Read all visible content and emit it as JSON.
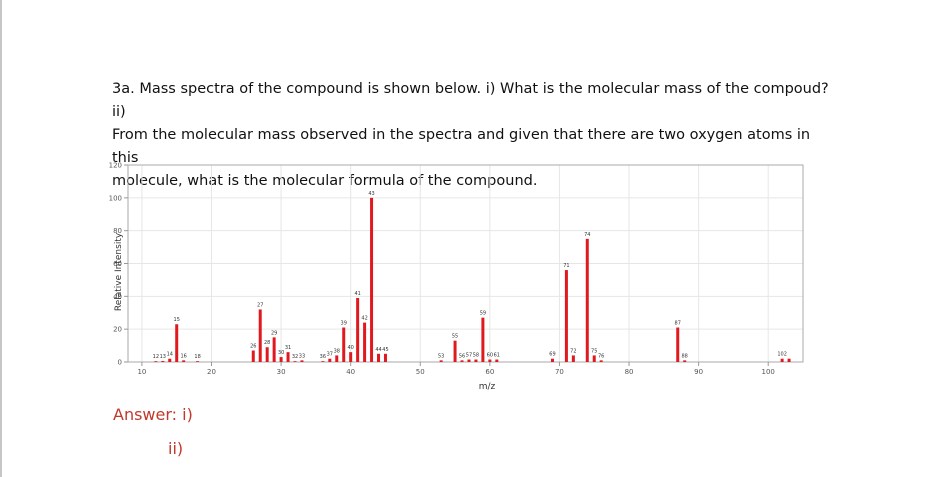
{
  "question": {
    "line1": "3a. Mass spectra of the compound is shown below. i) What is the molecular mass of the compoud? ii)",
    "line2": "From the molecular mass observed in the spectra and given that there are two oxygen atoms in this",
    "line3": "molecule, what is the molecular formula of the compound."
  },
  "answer": {
    "part1": "Answer: i)",
    "part2": "ii)"
  },
  "colors": {
    "bar": "#e0191f",
    "grid": "#e6e6e6",
    "axis": "#999999"
  },
  "chart_data": {
    "type": "bar",
    "title": "",
    "xlabel": "m/z",
    "ylabel": "Relative Intensity",
    "xlim": [
      8,
      105
    ],
    "ylim": [
      0,
      120
    ],
    "xticks": [
      10,
      20,
      30,
      40,
      50,
      60,
      70,
      80,
      90,
      100
    ],
    "yticks": [
      0,
      20,
      40,
      60,
      80,
      100,
      120
    ],
    "grid": true,
    "peaks": [
      {
        "mz": 12,
        "label": "12",
        "intensity": 0.5
      },
      {
        "mz": 13,
        "label": "13",
        "intensity": 0.6
      },
      {
        "mz": 14,
        "label": "14",
        "intensity": 2
      },
      {
        "mz": 15,
        "label": "15",
        "intensity": 23
      },
      {
        "mz": 16,
        "label": "16",
        "intensity": 1
      },
      {
        "mz": 18,
        "label": "18",
        "intensity": 0.5
      },
      {
        "mz": 26,
        "label": "26",
        "intensity": 7
      },
      {
        "mz": 27,
        "label": "27",
        "intensity": 32
      },
      {
        "mz": 28,
        "label": "28",
        "intensity": 9
      },
      {
        "mz": 29,
        "label": "29",
        "intensity": 15
      },
      {
        "mz": 30,
        "label": "30",
        "intensity": 3
      },
      {
        "mz": 31,
        "label": "31",
        "intensity": 6
      },
      {
        "mz": 32,
        "label": "32",
        "intensity": 0.5
      },
      {
        "mz": 33,
        "label": "33",
        "intensity": 1
      },
      {
        "mz": 36,
        "label": "36",
        "intensity": 0.5
      },
      {
        "mz": 37,
        "label": "37",
        "intensity": 2
      },
      {
        "mz": 38,
        "label": "38",
        "intensity": 4
      },
      {
        "mz": 39,
        "label": "39",
        "intensity": 21
      },
      {
        "mz": 40,
        "label": "40",
        "intensity": 6
      },
      {
        "mz": 41,
        "label": "41",
        "intensity": 39
      },
      {
        "mz": 42,
        "label": "42",
        "intensity": 24
      },
      {
        "mz": 43,
        "label": "43",
        "intensity": 100
      },
      {
        "mz": 44,
        "label": "44",
        "intensity": 5
      },
      {
        "mz": 45,
        "label": "45",
        "intensity": 5
      },
      {
        "mz": 53,
        "label": "53",
        "intensity": 1
      },
      {
        "mz": 55,
        "label": "55",
        "intensity": 13
      },
      {
        "mz": 56,
        "label": "56",
        "intensity": 1
      },
      {
        "mz": 57,
        "label": "57",
        "intensity": 1.5
      },
      {
        "mz": 58,
        "label": "58",
        "intensity": 1.5
      },
      {
        "mz": 59,
        "label": "59",
        "intensity": 27
      },
      {
        "mz": 60,
        "label": "60",
        "intensity": 1.5
      },
      {
        "mz": 61,
        "label": "61",
        "intensity": 1.5
      },
      {
        "mz": 69,
        "label": "69",
        "intensity": 2
      },
      {
        "mz": 71,
        "label": "71",
        "intensity": 56
      },
      {
        "mz": 72,
        "label": "72",
        "intensity": 4
      },
      {
        "mz": 74,
        "label": "74",
        "intensity": 75
      },
      {
        "mz": 75,
        "label": "75",
        "intensity": 4
      },
      {
        "mz": 76,
        "label": "76",
        "intensity": 1
      },
      {
        "mz": 87,
        "label": "87",
        "intensity": 21
      },
      {
        "mz": 88,
        "label": "88",
        "intensity": 1
      },
      {
        "mz": 102,
        "label": "102",
        "intensity": 2
      },
      {
        "mz": 103,
        "label": "",
        "intensity": 2
      }
    ]
  }
}
